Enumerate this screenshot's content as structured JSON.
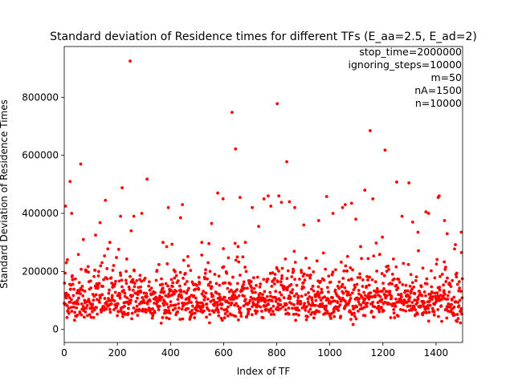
{
  "chart_data": {
    "type": "scatter",
    "title": "Standard deviation of Residence times for different TFs (E_aa=2.5, E_ad=2)",
    "xlabel": "Index of TF",
    "ylabel": "Standard Deviation of Residence Times",
    "xlim": [
      0,
      1500
    ],
    "ylim": [
      -45000,
      975000
    ],
    "xticks": [
      0,
      200,
      400,
      600,
      800,
      1000,
      1200,
      1400
    ],
    "yticks": [
      0,
      200000,
      400000,
      600000,
      800000
    ],
    "grid": false,
    "color": "#ff0000",
    "annotations": [
      "stop_time=2000000",
      "ignoring_steps=10000",
      "m=50",
      "nA=1500",
      "n=10000"
    ],
    "n_points": 1500,
    "outliers": [
      {
        "x": 5,
        "y": 425000
      },
      {
        "x": 8,
        "y": 230000
      },
      {
        "x": 12,
        "y": 240000
      },
      {
        "x": 22,
        "y": 510000
      },
      {
        "x": 28,
        "y": 400000
      },
      {
        "x": 62,
        "y": 570000
      },
      {
        "x": 72,
        "y": 310000
      },
      {
        "x": 118,
        "y": 325000
      },
      {
        "x": 135,
        "y": 368000
      },
      {
        "x": 155,
        "y": 445000
      },
      {
        "x": 172,
        "y": 300000
      },
      {
        "x": 212,
        "y": 390000
      },
      {
        "x": 218,
        "y": 488000
      },
      {
        "x": 248,
        "y": 925000
      },
      {
        "x": 252,
        "y": 340000
      },
      {
        "x": 262,
        "y": 390000
      },
      {
        "x": 292,
        "y": 400000
      },
      {
        "x": 312,
        "y": 518000
      },
      {
        "x": 372,
        "y": 300000
      },
      {
        "x": 392,
        "y": 420000
      },
      {
        "x": 438,
        "y": 385000
      },
      {
        "x": 445,
        "y": 430000
      },
      {
        "x": 518,
        "y": 300000
      },
      {
        "x": 555,
        "y": 365000
      },
      {
        "x": 578,
        "y": 470000
      },
      {
        "x": 598,
        "y": 450000
      },
      {
        "x": 632,
        "y": 748000
      },
      {
        "x": 645,
        "y": 622000
      },
      {
        "x": 662,
        "y": 455000
      },
      {
        "x": 682,
        "y": 300000
      },
      {
        "x": 708,
        "y": 420000
      },
      {
        "x": 732,
        "y": 355000
      },
      {
        "x": 752,
        "y": 450000
      },
      {
        "x": 768,
        "y": 460000
      },
      {
        "x": 778,
        "y": 425000
      },
      {
        "x": 802,
        "y": 778000
      },
      {
        "x": 808,
        "y": 460000
      },
      {
        "x": 818,
        "y": 438000
      },
      {
        "x": 838,
        "y": 578000
      },
      {
        "x": 848,
        "y": 440000
      },
      {
        "x": 868,
        "y": 420000
      },
      {
        "x": 902,
        "y": 360000
      },
      {
        "x": 958,
        "y": 375000
      },
      {
        "x": 988,
        "y": 458000
      },
      {
        "x": 1012,
        "y": 400000
      },
      {
        "x": 1048,
        "y": 420000
      },
      {
        "x": 1058,
        "y": 430000
      },
      {
        "x": 1082,
        "y": 435000
      },
      {
        "x": 1098,
        "y": 380000
      },
      {
        "x": 1132,
        "y": 480000
      },
      {
        "x": 1152,
        "y": 685000
      },
      {
        "x": 1162,
        "y": 450000
      },
      {
        "x": 1198,
        "y": 318000
      },
      {
        "x": 1208,
        "y": 618000
      },
      {
        "x": 1252,
        "y": 508000
      },
      {
        "x": 1272,
        "y": 390000
      },
      {
        "x": 1298,
        "y": 505000
      },
      {
        "x": 1312,
        "y": 370000
      },
      {
        "x": 1332,
        "y": 335000
      },
      {
        "x": 1362,
        "y": 405000
      },
      {
        "x": 1372,
        "y": 400000
      },
      {
        "x": 1408,
        "y": 455000
      },
      {
        "x": 1412,
        "y": 460000
      },
      {
        "x": 1432,
        "y": 375000
      },
      {
        "x": 1442,
        "y": 330000
      },
      {
        "x": 1495,
        "y": 335000
      }
    ]
  }
}
